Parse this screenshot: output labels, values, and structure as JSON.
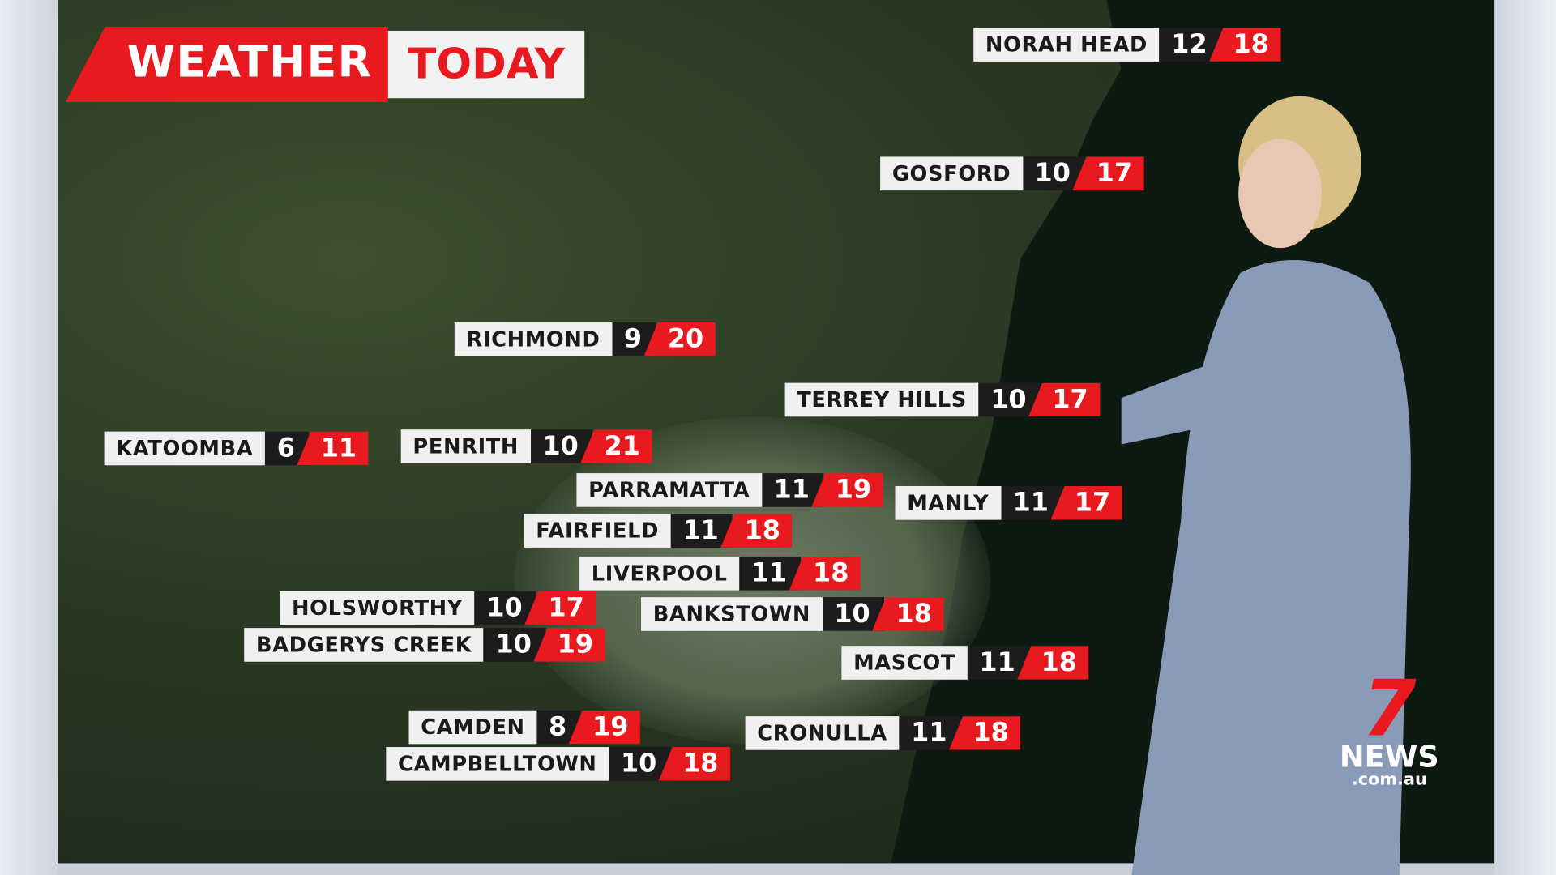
{
  "header": {
    "title_left": "WEATHER",
    "title_right": "TODAY"
  },
  "colors": {
    "accent_red": "#e8191f",
    "label_bg": "#f0f0f0",
    "min_bg": "#1c1c1c",
    "ocean": "#1b4aa8"
  },
  "locations": [
    {
      "name": "NORAH HEAD",
      "min": "12",
      "max": "18"
    },
    {
      "name": "GOSFORD",
      "min": "10",
      "max": "17"
    },
    {
      "name": "RICHMOND",
      "min": "9",
      "max": "20"
    },
    {
      "name": "TERREY HILLS",
      "min": "10",
      "max": "17"
    },
    {
      "name": "KATOOMBA",
      "min": "6",
      "max": "11"
    },
    {
      "name": "PENRITH",
      "min": "10",
      "max": "21"
    },
    {
      "name": "PARRAMATTA",
      "min": "11",
      "max": "19"
    },
    {
      "name": "MANLY",
      "min": "11",
      "max": "17"
    },
    {
      "name": "FAIRFIELD",
      "min": "11",
      "max": "18"
    },
    {
      "name": "LIVERPOOL",
      "min": "11",
      "max": "18"
    },
    {
      "name": "HOLSWORTHY",
      "min": "10",
      "max": "17"
    },
    {
      "name": "BANKSTOWN",
      "min": "10",
      "max": "18"
    },
    {
      "name": "BADGERYS CREEK",
      "min": "10",
      "max": "19"
    },
    {
      "name": "MASCOT",
      "min": "11",
      "max": "18"
    },
    {
      "name": "CAMDEN",
      "min": "8",
      "max": "19"
    },
    {
      "name": "CRONULLA",
      "min": "11",
      "max": "18"
    },
    {
      "name": "CAMPBELLTOWN",
      "min": "10",
      "max": "18"
    }
  ],
  "logo": {
    "mark": "7",
    "brand": "NEWS",
    "domain": ".com.au"
  }
}
